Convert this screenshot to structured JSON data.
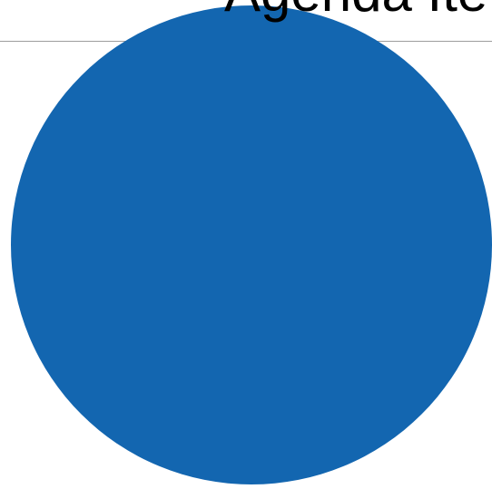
{
  "slide": {
    "title": "Agenda Ite"
  },
  "colors": {
    "circle_fill": "#1366b0",
    "rule": "#9e9e9e",
    "title_text": "#000000",
    "background": "#ffffff"
  }
}
